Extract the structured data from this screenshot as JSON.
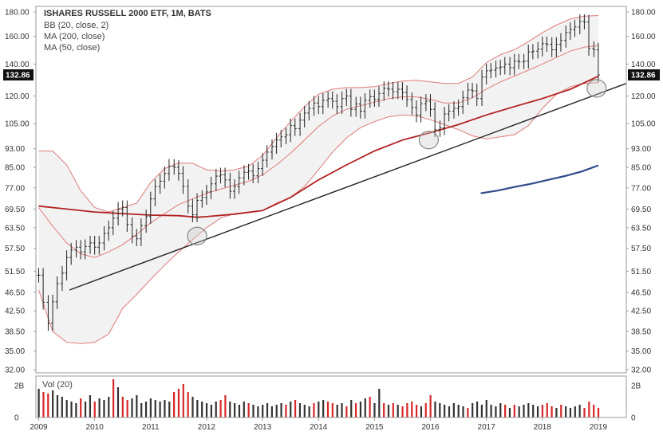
{
  "chart_data": {
    "type": "line",
    "title": "ISHARES RUSSELL 2000 ETF, 1M, BATS",
    "legend": [
      "BB (20, close, 2)",
      "MA (200, close)",
      "MA (50, close)"
    ],
    "last_price_label": "132.86",
    "last_price": 132.86,
    "y_scale": "log",
    "ylim": [
      31.5,
      185
    ],
    "y_ticks": [
      "180.00",
      "160.00",
      "140.00",
      "120.00",
      "105.00",
      "93.00",
      "85.00",
      "77.00",
      "69.50",
      "63.50",
      "57.50",
      "51.50",
      "46.50",
      "42.50",
      "38.50",
      "35.00",
      "32.00"
    ],
    "xlim": [
      2008.95,
      2019.5
    ],
    "x_ticks": [
      "2009",
      "2010",
      "2011",
      "2012",
      "2013",
      "2014",
      "2015",
      "2016",
      "2017",
      "2018",
      "2019"
    ],
    "colors": {
      "price_bars": "#222222",
      "bollinger": "#e07b7b",
      "ma_50": "#b22222",
      "ma_200": "#2f4a8a",
      "trendline": "#222222",
      "band_fill": "#f2f2f2",
      "vol_up": "#333333",
      "vol_down": "#d62828"
    },
    "price_series": [
      [
        2009.0,
        50.5
      ],
      [
        2009.08,
        44.3
      ],
      [
        2009.17,
        40.0
      ],
      [
        2009.25,
        44.4
      ],
      [
        2009.33,
        48.5
      ],
      [
        2009.42,
        51.0
      ],
      [
        2009.5,
        55.0
      ],
      [
        2009.58,
        57.0
      ],
      [
        2009.67,
        57.8
      ],
      [
        2009.75,
        56.5
      ],
      [
        2009.83,
        58.0
      ],
      [
        2009.92,
        59.0
      ],
      [
        2010.0,
        57.8
      ],
      [
        2010.08,
        59.0
      ],
      [
        2010.17,
        61.8
      ],
      [
        2010.25,
        63.5
      ],
      [
        2010.33,
        66.5
      ],
      [
        2010.42,
        69.5
      ],
      [
        2010.5,
        70.0
      ],
      [
        2010.58,
        64.5
      ],
      [
        2010.67,
        61.0
      ],
      [
        2010.75,
        60.2
      ],
      [
        2010.83,
        64.2
      ],
      [
        2010.92,
        67.0
      ],
      [
        2011.0,
        73.0
      ],
      [
        2011.08,
        77.5
      ],
      [
        2011.17,
        79.5
      ],
      [
        2011.25,
        82.5
      ],
      [
        2011.33,
        85.5
      ],
      [
        2011.42,
        85.0
      ],
      [
        2011.5,
        82.6
      ],
      [
        2011.58,
        77.5
      ],
      [
        2011.67,
        70.5
      ],
      [
        2011.75,
        67.6
      ],
      [
        2011.83,
        72.5
      ],
      [
        2011.92,
        73.5
      ],
      [
        2012.0,
        75.5
      ],
      [
        2012.08,
        78.5
      ],
      [
        2012.17,
        81.5
      ],
      [
        2012.25,
        82.0
      ],
      [
        2012.33,
        80.0
      ],
      [
        2012.42,
        75.7
      ],
      [
        2012.5,
        77.5
      ],
      [
        2012.58,
        80.8
      ],
      [
        2012.67,
        83.0
      ],
      [
        2012.75,
        83.5
      ],
      [
        2012.83,
        81.6
      ],
      [
        2012.92,
        84.5
      ],
      [
        2013.0,
        88.0
      ],
      [
        2013.08,
        91.5
      ],
      [
        2013.17,
        94.0
      ],
      [
        2013.25,
        97.0
      ],
      [
        2013.33,
        98.5
      ],
      [
        2013.42,
        99.5
      ],
      [
        2013.5,
        104.0
      ],
      [
        2013.58,
        102.5
      ],
      [
        2013.67,
        106.8
      ],
      [
        2013.75,
        110.5
      ],
      [
        2013.83,
        113.0
      ],
      [
        2013.92,
        116.0
      ],
      [
        2014.0,
        114.0
      ],
      [
        2014.08,
        117.5
      ],
      [
        2014.17,
        118.5
      ],
      [
        2014.25,
        117.0
      ],
      [
        2014.33,
        114.0
      ],
      [
        2014.42,
        118.5
      ],
      [
        2014.5,
        120.0
      ],
      [
        2014.58,
        112.5
      ],
      [
        2014.67,
        115.5
      ],
      [
        2014.75,
        111.5
      ],
      [
        2014.83,
        117.5
      ],
      [
        2014.92,
        119.6
      ],
      [
        2015.0,
        118.0
      ],
      [
        2015.08,
        121.5
      ],
      [
        2015.17,
        124.5
      ],
      [
        2015.25,
        124.0
      ],
      [
        2015.33,
        122.5
      ],
      [
        2015.42,
        124.0
      ],
      [
        2015.5,
        122.0
      ],
      [
        2015.58,
        118.0
      ],
      [
        2015.67,
        113.5
      ],
      [
        2015.75,
        109.5
      ],
      [
        2015.83,
        115.6
      ],
      [
        2015.92,
        117.0
      ],
      [
        2016.0,
        112.5
      ],
      [
        2016.08,
        102.0
      ],
      [
        2016.17,
        103.0
      ],
      [
        2016.25,
        110.0
      ],
      [
        2016.33,
        111.5
      ],
      [
        2016.42,
        113.0
      ],
      [
        2016.5,
        114.0
      ],
      [
        2016.58,
        119.0
      ],
      [
        2016.67,
        123.5
      ],
      [
        2016.75,
        123.0
      ],
      [
        2016.83,
        118.5
      ],
      [
        2016.92,
        131.5
      ],
      [
        2017.0,
        135.5
      ],
      [
        2017.08,
        136.0
      ],
      [
        2017.17,
        137.5
      ],
      [
        2017.25,
        138.0
      ],
      [
        2017.33,
        140.0
      ],
      [
        2017.42,
        137.5
      ],
      [
        2017.5,
        142.0
      ],
      [
        2017.58,
        141.5
      ],
      [
        2017.67,
        142.0
      ],
      [
        2017.75,
        148.5
      ],
      [
        2017.83,
        149.0
      ],
      [
        2017.92,
        150.5
      ],
      [
        2018.0,
        154.5
      ],
      [
        2018.08,
        154.0
      ],
      [
        2018.17,
        150.0
      ],
      [
        2018.25,
        154.0
      ],
      [
        2018.33,
        157.0
      ],
      [
        2018.42,
        163.0
      ],
      [
        2018.5,
        165.5
      ],
      [
        2018.58,
        167.5
      ],
      [
        2018.67,
        172.0
      ],
      [
        2018.75,
        171.5
      ],
      [
        2018.83,
        151.0
      ],
      [
        2018.92,
        150.0
      ],
      [
        2019.0,
        132.86
      ]
    ],
    "bollinger_upper": [
      [
        2009.0,
        92.0
      ],
      [
        2009.25,
        92.0
      ],
      [
        2009.5,
        86.0
      ],
      [
        2009.75,
        76.0
      ],
      [
        2010.0,
        70.0
      ],
      [
        2010.25,
        68.5
      ],
      [
        2010.5,
        70.0
      ],
      [
        2010.75,
        71.5
      ],
      [
        2011.0,
        79.0
      ],
      [
        2011.25,
        84.5
      ],
      [
        2011.5,
        86.8
      ],
      [
        2011.75,
        86.7
      ],
      [
        2012.0,
        84.0
      ],
      [
        2012.25,
        83.5
      ],
      [
        2012.5,
        84.0
      ],
      [
        2012.75,
        85.5
      ],
      [
        2013.0,
        90.0
      ],
      [
        2013.25,
        98.0
      ],
      [
        2013.5,
        106.0
      ],
      [
        2013.75,
        114.0
      ],
      [
        2014.0,
        121.0
      ],
      [
        2014.25,
        124.0
      ],
      [
        2014.5,
        125.0
      ],
      [
        2014.75,
        125.0
      ],
      [
        2015.0,
        125.5
      ],
      [
        2015.25,
        127.5
      ],
      [
        2015.5,
        129.0
      ],
      [
        2015.75,
        129.5
      ],
      [
        2016.0,
        128.5
      ],
      [
        2016.25,
        127.5
      ],
      [
        2016.5,
        127.5
      ],
      [
        2016.75,
        131.5
      ],
      [
        2017.0,
        141.0
      ],
      [
        2017.25,
        146.5
      ],
      [
        2017.5,
        150.0
      ],
      [
        2017.75,
        156.0
      ],
      [
        2018.0,
        163.0
      ],
      [
        2018.25,
        169.0
      ],
      [
        2018.5,
        174.0
      ],
      [
        2018.75,
        176.5
      ],
      [
        2019.0,
        177.0
      ]
    ],
    "bollinger_middle": [
      [
        2009.0,
        70.0
      ],
      [
        2009.25,
        64.0
      ],
      [
        2009.5,
        59.0
      ],
      [
        2009.75,
        56.0
      ],
      [
        2010.0,
        55.0
      ],
      [
        2010.25,
        56.5
      ],
      [
        2010.5,
        58.5
      ],
      [
        2010.75,
        61.5
      ],
      [
        2011.0,
        65.0
      ],
      [
        2011.25,
        68.0
      ],
      [
        2011.5,
        71.0
      ],
      [
        2011.75,
        73.0
      ],
      [
        2012.0,
        75.0
      ],
      [
        2012.25,
        76.5
      ],
      [
        2012.5,
        78.0
      ],
      [
        2012.75,
        79.5
      ],
      [
        2013.0,
        82.0
      ],
      [
        2013.25,
        86.0
      ],
      [
        2013.5,
        91.0
      ],
      [
        2013.75,
        97.0
      ],
      [
        2014.0,
        103.5
      ],
      [
        2014.25,
        109.0
      ],
      [
        2014.5,
        112.5
      ],
      [
        2014.75,
        114.5
      ],
      [
        2015.0,
        116.5
      ],
      [
        2015.25,
        118.5
      ],
      [
        2015.5,
        119.5
      ],
      [
        2015.75,
        119.5
      ],
      [
        2016.0,
        118.0
      ],
      [
        2016.25,
        116.0
      ],
      [
        2016.5,
        116.0
      ],
      [
        2016.75,
        119.0
      ],
      [
        2017.0,
        124.0
      ],
      [
        2017.25,
        128.5
      ],
      [
        2017.5,
        132.0
      ],
      [
        2017.75,
        136.0
      ],
      [
        2018.0,
        140.0
      ],
      [
        2018.25,
        144.5
      ],
      [
        2018.5,
        149.0
      ],
      [
        2018.75,
        152.0
      ],
      [
        2019.0,
        153.0
      ]
    ],
    "bollinger_lower": [
      [
        2009.0,
        47.0
      ],
      [
        2009.25,
        38.5
      ],
      [
        2009.5,
        36.5
      ],
      [
        2009.75,
        36.3
      ],
      [
        2010.0,
        36.5
      ],
      [
        2010.25,
        38.0
      ],
      [
        2010.5,
        43.0
      ],
      [
        2010.75,
        46.0
      ],
      [
        2011.0,
        49.5
      ],
      [
        2011.25,
        53.0
      ],
      [
        2011.5,
        56.5
      ],
      [
        2011.75,
        60.0
      ],
      [
        2012.0,
        63.5
      ],
      [
        2012.25,
        66.5
      ],
      [
        2012.5,
        68.0
      ],
      [
        2012.75,
        68.5
      ],
      [
        2013.0,
        69.0
      ],
      [
        2013.25,
        71.5
      ],
      [
        2013.5,
        73.5
      ],
      [
        2013.75,
        77.5
      ],
      [
        2014.0,
        84.0
      ],
      [
        2014.25,
        91.5
      ],
      [
        2014.5,
        98.0
      ],
      [
        2014.75,
        103.0
      ],
      [
        2015.0,
        106.0
      ],
      [
        2015.25,
        108.5
      ],
      [
        2015.5,
        109.5
      ],
      [
        2015.75,
        109.0
      ],
      [
        2016.0,
        107.0
      ],
      [
        2016.25,
        104.5
      ],
      [
        2016.5,
        102.0
      ],
      [
        2016.75,
        99.0
      ],
      [
        2017.0,
        97.5
      ],
      [
        2017.25,
        98.5
      ],
      [
        2017.5,
        99.5
      ],
      [
        2017.75,
        104.0
      ],
      [
        2018.0,
        113.0
      ],
      [
        2018.25,
        121.0
      ],
      [
        2018.5,
        125.5
      ],
      [
        2018.75,
        127.5
      ],
      [
        2019.0,
        128.0
      ]
    ],
    "ma_50": [
      [
        2009.0,
        70.5
      ],
      [
        2009.5,
        69.5
      ],
      [
        2010.0,
        68.5
      ],
      [
        2010.5,
        68.0
      ],
      [
        2011.0,
        67.5
      ],
      [
        2011.5,
        67.3
      ],
      [
        2011.83,
        66.8
      ],
      [
        2012.0,
        67.0
      ],
      [
        2012.5,
        67.8
      ],
      [
        2013.0,
        69.0
      ],
      [
        2013.5,
        73.5
      ],
      [
        2014.0,
        80.0
      ],
      [
        2014.5,
        86.0
      ],
      [
        2015.0,
        92.0
      ],
      [
        2015.5,
        97.0
      ],
      [
        2016.0,
        100.5
      ],
      [
        2016.5,
        104.5
      ],
      [
        2017.0,
        109.5
      ],
      [
        2017.5,
        114.0
      ],
      [
        2018.0,
        118.5
      ],
      [
        2018.5,
        124.0
      ],
      [
        2019.0,
        132.0
      ]
    ],
    "ma_200": [
      [
        2016.9,
        75.0
      ],
      [
        2017.2,
        76.0
      ],
      [
        2017.5,
        77.3
      ],
      [
        2017.8,
        78.5
      ],
      [
        2018.1,
        80.0
      ],
      [
        2018.4,
        81.5
      ],
      [
        2018.7,
        83.3
      ],
      [
        2019.0,
        85.8
      ]
    ],
    "trendline": [
      [
        2009.55,
        47.0
      ],
      [
        2019.5,
        127.5
      ]
    ],
    "highlight_circles": [
      [
        2011.83,
        61.0
      ],
      [
        2015.97,
        97.0
      ],
      [
        2018.97,
        124.5
      ]
    ],
    "volume_panel": {
      "label": "Vol (20)",
      "y_ticks": [
        "2B",
        "0"
      ],
      "volume_bars": [
        1.8,
        1.6,
        1.5,
        1.7,
        1.4,
        1.3,
        1.1,
        1.0,
        0.9,
        1.2,
        1.0,
        1.4,
        1.0,
        1.2,
        1.1,
        1.3,
        2.4,
        1.9,
        1.3,
        1.1,
        1.2,
        1.4,
        0.9,
        1.0,
        1.2,
        1.1,
        1.0,
        1.1,
        1.0,
        1.6,
        1.8,
        2.1,
        1.6,
        1.3,
        1.1,
        1.0,
        0.9,
        0.8,
        1.0,
        1.1,
        1.4,
        1.0,
        0.9,
        0.8,
        1.0,
        0.9,
        0.8,
        0.7,
        0.8,
        0.9,
        0.7,
        0.8,
        0.9,
        0.8,
        1.0,
        1.1,
        0.9,
        0.8,
        0.7,
        0.9,
        1.0,
        1.1,
        1.0,
        0.9,
        0.8,
        0.9,
        0.7,
        1.1,
        0.9,
        1.0,
        1.2,
        1.3,
        0.9,
        1.8,
        0.9,
        0.8,
        0.9,
        0.8,
        0.7,
        0.9,
        1.0,
        0.8,
        0.7,
        0.9,
        1.4,
        1.0,
        0.9,
        0.8,
        0.7,
        0.9,
        0.8,
        0.7,
        0.6,
        0.9,
        1.0,
        0.8,
        1.1,
        0.8,
        0.7,
        0.9,
        0.8,
        0.6,
        0.8,
        0.7,
        0.8,
        0.9,
        0.8,
        0.7,
        0.8,
        0.9,
        0.7,
        0.6,
        0.8,
        0.7,
        0.6,
        0.7,
        0.8,
        0.6,
        1.0,
        0.8,
        0.6
      ],
      "volume_up": [
        true,
        false,
        false,
        true,
        true,
        true,
        true,
        true,
        true,
        false,
        true,
        true,
        false,
        true,
        true,
        true,
        false,
        true,
        false,
        false,
        true,
        true,
        true,
        true,
        true,
        true,
        true,
        true,
        true,
        false,
        false,
        false,
        false,
        true,
        true,
        true,
        true,
        true,
        true,
        false,
        false,
        true,
        true,
        true,
        true,
        false,
        true,
        true,
        true,
        true,
        true,
        true,
        true,
        false,
        true,
        false,
        true,
        true,
        true,
        false,
        true,
        true,
        false,
        false,
        true,
        true,
        false,
        true,
        false,
        true,
        true,
        false,
        true,
        true,
        false,
        true,
        false,
        true,
        false,
        false,
        false,
        false,
        true,
        false,
        false,
        true,
        true,
        true,
        true,
        true,
        true,
        true,
        false,
        true,
        true,
        true,
        true,
        true,
        true,
        true,
        false,
        true,
        false,
        true,
        true,
        true,
        true,
        true,
        false,
        false,
        false,
        true,
        false,
        true,
        true,
        true,
        true,
        false,
        false,
        false,
        false
      ]
    }
  }
}
